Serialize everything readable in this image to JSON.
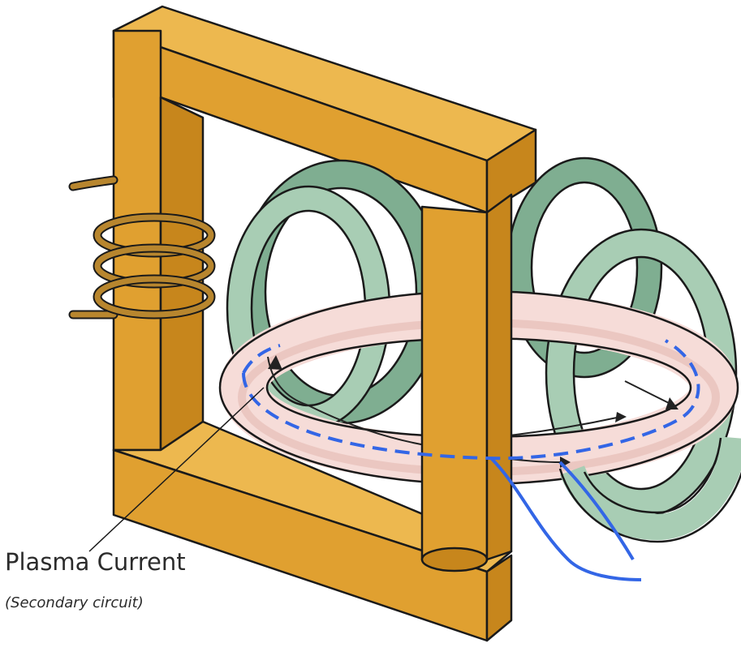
{
  "labels": {
    "primary": "Plasma Current",
    "secondary": "(Secondary circuit)"
  },
  "colors": {
    "iron_core": "#E0A030",
    "iron_core_dark": "#C7861C",
    "iron_core_light": "#EDB84F",
    "toroidal_coil": "#A8CDB4",
    "toroidal_coil_dark": "#7FAE91",
    "plasma": "#F6DCD8",
    "plasma_dark": "#E9C2BC",
    "primary_winding": "#B8862E",
    "circuit_line": "#3366E6",
    "outline": "#1a1a1a"
  },
  "icons": [
    "transformer-core",
    "primary-coil",
    "toroidal-field-coil",
    "plasma-ring",
    "current-arrow",
    "secondary-circuit-loop"
  ]
}
